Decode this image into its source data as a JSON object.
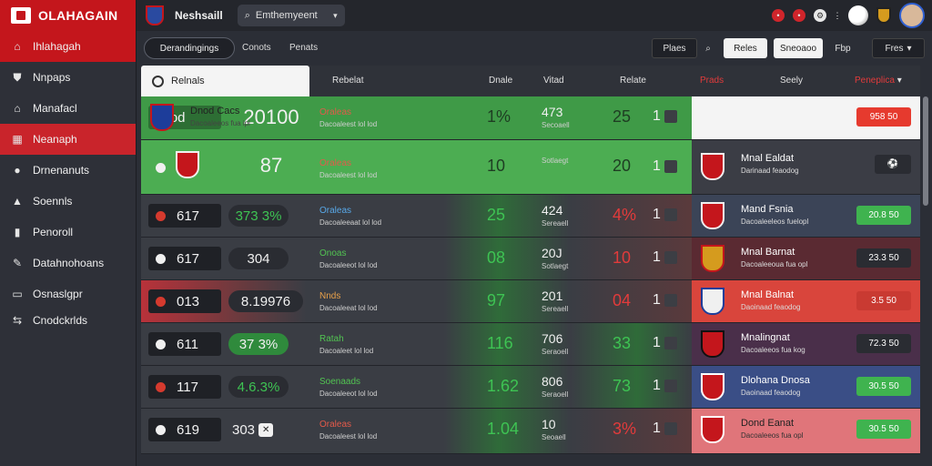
{
  "app": {
    "brand": "OLAHAGAIN",
    "title": "Neshsaill",
    "search_placeholder": "Emthemyeent"
  },
  "sidebar": {
    "items": [
      {
        "label": "Ihlahagah",
        "icon": "home-icon"
      },
      {
        "label": "Nnpaps",
        "icon": "shield-icon"
      },
      {
        "label": "Manafacl",
        "icon": "house-icon"
      },
      {
        "label": "Neanaph",
        "icon": "table-icon"
      },
      {
        "label": "Drnenanuts",
        "icon": "pin-icon"
      },
      {
        "label": "Soennls",
        "icon": "chart-icon"
      },
      {
        "label": "Penoroll",
        "icon": "document-icon"
      },
      {
        "label": "Datahnohoans",
        "icon": "wrench-icon"
      },
      {
        "label": "Osnaslgpr",
        "icon": "monitor-icon"
      },
      {
        "label": "Cnodckrlds",
        "icon": "link-icon"
      }
    ]
  },
  "toolbar": {
    "tab_active": "Derandingings",
    "tab_2": "Conots",
    "tab_3": "Penats",
    "btn_1": "Plaes",
    "btn_2": "Reles",
    "btn_3": "Sneoaoo",
    "btn_4": "Fbp",
    "btn_5": "Fres"
  },
  "table": {
    "first_header": "Relnals",
    "headers": {
      "h1": "Rebelat",
      "h2": "Dnale",
      "h3": "Vitad",
      "h4": "Relate",
      "h5": "Prads",
      "h6": "Seely",
      "h7": "Peneplica"
    },
    "rows": [
      {
        "rank": "3 lod",
        "score": "20100",
        "match": "Oraleas",
        "match_sub": "Dacoaleest  lol lod",
        "pct": "1%",
        "num": "473",
        "num_sub": "Secoaell",
        "val": "25",
        "mini": "1",
        "side_name": "Dnod Cacs",
        "side_sub": "Dacoaleeos fua ipl",
        "odds": "958 50"
      },
      {
        "rank": "",
        "score": "87",
        "match": "Oraleas",
        "match_sub": "Dacoaleest  lol lod",
        "pct": "10",
        "num": "",
        "num_sub": "Sotlaegt",
        "val": "20",
        "mini": "1",
        "side_name": "Mnal Ealdat",
        "side_sub": "Darinaad feaodog",
        "odds": ""
      },
      {
        "rank": "617",
        "score": "373 3%",
        "match": "Oraleas",
        "match_sub": "Dacoaleeaat  lol lod",
        "pct": "25",
        "num": "424",
        "num_sub": "Sereaell",
        "val": "4%",
        "mini": "1",
        "side_name": "Mand Fsnia",
        "side_sub": "Dacoaleeleos fuelopl",
        "odds": "20.8 50"
      },
      {
        "rank": "617",
        "score": "304",
        "match": "Onoas",
        "match_sub": "Dacoaleeot  lol lod",
        "pct": "08",
        "num": "20J",
        "num_sub": "Sotlaegt",
        "val": "10",
        "mini": "1",
        "side_name": "Mnal Barnat",
        "side_sub": "Dacoaleeoua fua opl",
        "odds": "23.3 50"
      },
      {
        "rank": "013",
        "score": "8.19976",
        "match": "Nnds",
        "match_sub": "Dacoaleeat  lol lod",
        "pct": "97",
        "num": "201",
        "num_sub": "Sereaell",
        "val": "04",
        "mini": "1",
        "side_name": "Mnal Balnat",
        "side_sub": "Daoinaad feaodog",
        "odds": "3.5 50"
      },
      {
        "rank": "611",
        "score": "37 3%",
        "match": "Ratah",
        "match_sub": "Dacoaleet  lol lod",
        "pct": "116",
        "num": "706",
        "num_sub": "Seraoell",
        "val": "33",
        "mini": "1",
        "side_name": "Mnalingnat",
        "side_sub": "Dacoaleeos fua kog",
        "odds": "72.3 50"
      },
      {
        "rank": "117",
        "score": "4.6.3%",
        "match": "Soenaads",
        "match_sub": "Dacoaleeot  lol lod",
        "pct": "1.62",
        "num": "806",
        "num_sub": "Seraoell",
        "val": "73",
        "mini": "1",
        "side_name": "Dlohana Dnosa",
        "side_sub": "Daoinaad feaodog",
        "odds": "30.5 50"
      },
      {
        "rank": "619",
        "score": "303",
        "match": "Oraleas",
        "match_sub": "Dacoaleest  lol lod",
        "pct": "1.04",
        "num": "10",
        "num_sub": "Seoaell",
        "val": "3%",
        "mini": "1",
        "side_name": "Dond Eanat",
        "side_sub": "Dacoaleeos fua opl",
        "odds": "30.5 50"
      }
    ]
  },
  "colors": {
    "accent": "#c4161c",
    "positive": "#3ec353",
    "negative": "#e23b3b"
  }
}
